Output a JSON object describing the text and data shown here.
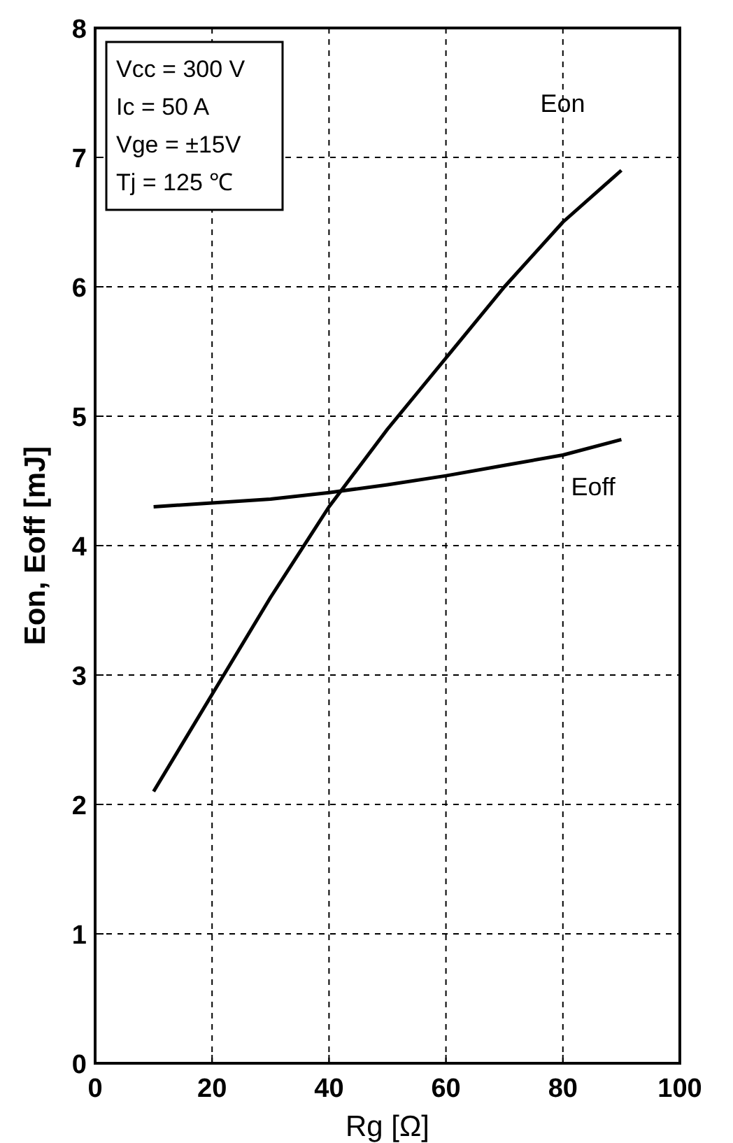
{
  "chart_data": {
    "type": "line",
    "xlabel": "Rg [Ω]",
    "ylabel": "Eon, Eoff [mJ]",
    "xlim": [
      0,
      100
    ],
    "xticks": [
      0,
      20,
      40,
      60,
      80,
      100
    ],
    "ylim": [
      0,
      8
    ],
    "yticks": [
      0,
      1,
      2,
      3,
      4,
      5,
      6,
      7,
      8
    ],
    "grid": true,
    "line_style": "solid",
    "annotations": [
      "Vcc = 300 V",
      "Ic = 50 A",
      "Vge = ±15V",
      "Tj = 125 ℃"
    ],
    "series": [
      {
        "name": "Eon",
        "color": "#000000",
        "x": [
          10,
          20,
          30,
          40,
          50,
          60,
          70,
          80,
          90
        ],
        "values": [
          2.1,
          2.85,
          3.6,
          4.3,
          4.9,
          5.45,
          6.0,
          6.5,
          6.9
        ]
      },
      {
        "name": "Eoff",
        "color": "#000000",
        "x": [
          10,
          20,
          30,
          40,
          50,
          60,
          70,
          80,
          90
        ],
        "values": [
          4.3,
          4.33,
          4.36,
          4.41,
          4.47,
          4.54,
          4.62,
          4.7,
          4.82
        ]
      }
    ]
  }
}
